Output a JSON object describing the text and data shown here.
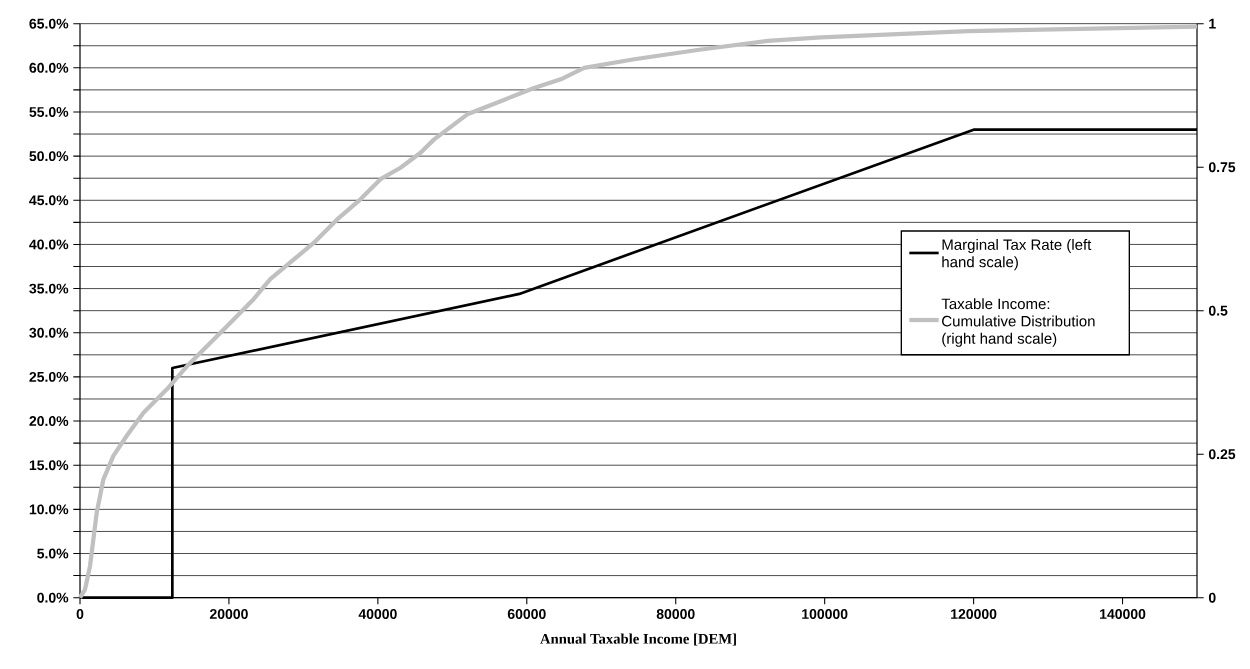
{
  "chart_data": {
    "type": "line",
    "xlabel": "Annual Taxable Income [DEM]",
    "xlim": [
      0,
      150000
    ],
    "xticks": [
      0,
      20000,
      40000,
      60000,
      80000,
      100000,
      120000,
      140000
    ],
    "ylim": [
      0,
      65
    ],
    "yticks": [
      {
        "value": 0,
        "label": "0.0%"
      },
      {
        "value": 2.5,
        "label": null
      },
      {
        "value": 5,
        "label": "5.0%"
      },
      {
        "value": 7.5,
        "label": null
      },
      {
        "value": 10,
        "label": "10.0%"
      },
      {
        "value": 12.5,
        "label": null
      },
      {
        "value": 15,
        "label": "15.0%"
      },
      {
        "value": 17.5,
        "label": null
      },
      {
        "value": 20,
        "label": "20.0%"
      },
      {
        "value": 22.5,
        "label": null
      },
      {
        "value": 25,
        "label": "25.0%"
      },
      {
        "value": 27.5,
        "label": null
      },
      {
        "value": 30,
        "label": "30.0%"
      },
      {
        "value": 32.5,
        "label": null
      },
      {
        "value": 35,
        "label": "35.0%"
      },
      {
        "value": 37.5,
        "label": null
      },
      {
        "value": 40,
        "label": "40.0%"
      },
      {
        "value": 42.5,
        "label": null
      },
      {
        "value": 45,
        "label": "45.0%"
      },
      {
        "value": 47.5,
        "label": null
      },
      {
        "value": 50,
        "label": "50.0%"
      },
      {
        "value": 52.5,
        "label": null
      },
      {
        "value": 55,
        "label": "55.0%"
      },
      {
        "value": 57.5,
        "label": null
      },
      {
        "value": 60,
        "label": "60.0%"
      },
      {
        "value": 62.5,
        "label": null
      },
      {
        "value": 65,
        "label": "65.0%"
      }
    ],
    "y2lim": [
      0,
      1
    ],
    "y2ticks": [
      0,
      0.25,
      0.5,
      0.75,
      1
    ],
    "grid": "y",
    "legend": "right",
    "series": [
      {
        "name": "Marginal Tax Rate (left hand scale)",
        "color": "#000000",
        "x": [
          0,
          12400,
          12400,
          59000,
          120000,
          150000
        ],
        "values": [
          0,
          0,
          26,
          34.4,
          53,
          53
        ]
      },
      {
        "name": "Taxable Income: Cumulative Distribution (right hand scale)",
        "color": "#c0c0c0",
        "axis": "y2",
        "x": [
          0,
          670,
          1345,
          2240,
          3140,
          4480,
          6280,
          8520,
          11660,
          14350,
          17040,
          19730,
          23310,
          25550,
          28240,
          31380,
          34530,
          37660,
          40350,
          43040,
          45730,
          47520,
          52010,
          56490,
          60970,
          64560,
          67700,
          74420,
          83390,
          92360,
          99530,
          119260,
          150000
        ],
        "values": [
          0,
          0.014,
          0.055,
          0.148,
          0.206,
          0.247,
          0.282,
          0.322,
          0.363,
          0.403,
          0.438,
          0.473,
          0.52,
          0.555,
          0.584,
          0.618,
          0.659,
          0.694,
          0.729,
          0.749,
          0.775,
          0.798,
          0.842,
          0.865,
          0.888,
          0.903,
          0.923,
          0.938,
          0.955,
          0.97,
          0.976,
          0.987,
          0.995
        ]
      }
    ]
  }
}
